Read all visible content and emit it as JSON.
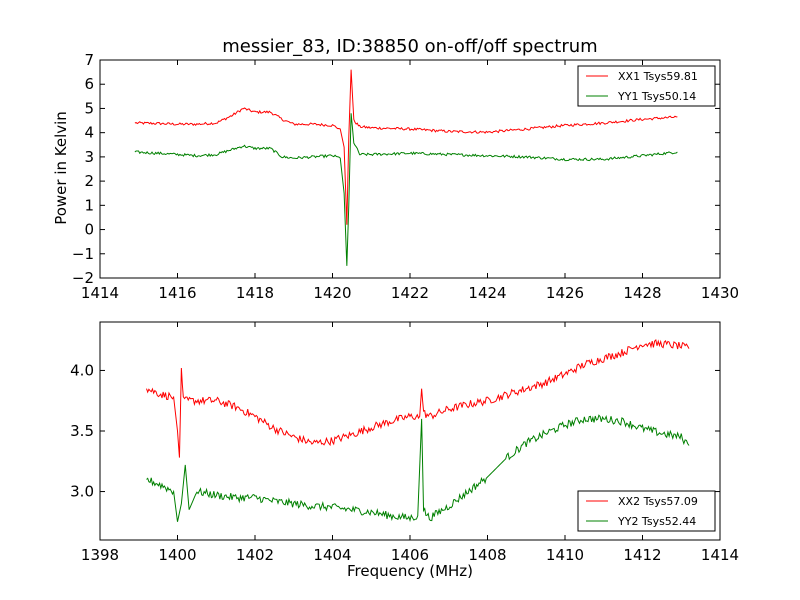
{
  "chart_data": [
    {
      "type": "line",
      "title": "messier_83, ID:38850 on-off/off spectrum",
      "xlabel": "",
      "ylabel": "Power in Kelvin",
      "xlim": [
        1414,
        1430
      ],
      "ylim": [
        -2,
        7
      ],
      "xticks": [
        "1414",
        "1416",
        "1418",
        "1420",
        "1422",
        "1424",
        "1426",
        "1428",
        "1430"
      ],
      "yticks": [
        "−2",
        "−1",
        "0",
        "1",
        "2",
        "3",
        "4",
        "5",
        "6",
        "7"
      ],
      "legend_position": "top-right",
      "series": [
        {
          "name": "XX1 Tsys59.81",
          "color": "#ff0000",
          "points": [
            [
              1414.9,
              4.4
            ],
            [
              1415.5,
              4.38
            ],
            [
              1416.0,
              4.35
            ],
            [
              1416.5,
              4.35
            ],
            [
              1417.0,
              4.4
            ],
            [
              1417.4,
              4.7
            ],
            [
              1417.7,
              5.0
            ],
            [
              1418.0,
              4.85
            ],
            [
              1418.4,
              4.85
            ],
            [
              1418.7,
              4.55
            ],
            [
              1419.0,
              4.35
            ],
            [
              1419.5,
              4.35
            ],
            [
              1420.0,
              4.3
            ],
            [
              1420.2,
              4.15
            ],
            [
              1420.3,
              3.4
            ],
            [
              1420.37,
              0.2
            ],
            [
              1420.42,
              3.8
            ],
            [
              1420.48,
              6.6
            ],
            [
              1420.55,
              4.5
            ],
            [
              1420.7,
              4.25
            ],
            [
              1421.0,
              4.2
            ],
            [
              1422.0,
              4.15
            ],
            [
              1423.0,
              4.05
            ],
            [
              1424.0,
              4.02
            ],
            [
              1425.0,
              4.15
            ],
            [
              1426.0,
              4.3
            ],
            [
              1427.0,
              4.4
            ],
            [
              1428.0,
              4.55
            ],
            [
              1428.9,
              4.65
            ]
          ]
        },
        {
          "name": "YY1 Tsys50.14",
          "color": "#008000",
          "points": [
            [
              1414.9,
              3.2
            ],
            [
              1415.5,
              3.15
            ],
            [
              1416.0,
              3.1
            ],
            [
              1416.5,
              3.05
            ],
            [
              1417.0,
              3.1
            ],
            [
              1417.4,
              3.3
            ],
            [
              1417.7,
              3.45
            ],
            [
              1418.0,
              3.35
            ],
            [
              1418.4,
              3.35
            ],
            [
              1418.7,
              3.0
            ],
            [
              1419.0,
              2.95
            ],
            [
              1419.5,
              3.0
            ],
            [
              1420.0,
              3.05
            ],
            [
              1420.2,
              2.95
            ],
            [
              1420.3,
              1.5
            ],
            [
              1420.37,
              -1.5
            ],
            [
              1420.42,
              1.0
            ],
            [
              1420.48,
              4.8
            ],
            [
              1420.55,
              3.6
            ],
            [
              1420.7,
              3.1
            ],
            [
              1421.0,
              3.1
            ],
            [
              1422.0,
              3.15
            ],
            [
              1423.0,
              3.1
            ],
            [
              1424.0,
              3.05
            ],
            [
              1425.0,
              3.0
            ],
            [
              1426.0,
              2.9
            ],
            [
              1427.0,
              2.9
            ],
            [
              1428.0,
              3.05
            ],
            [
              1428.9,
              3.2
            ]
          ]
        }
      ]
    },
    {
      "type": "line",
      "title": "",
      "xlabel": "Frequency (MHz)",
      "ylabel": "",
      "xlim": [
        1398,
        1414
      ],
      "ylim": [
        2.6,
        4.4
      ],
      "xticks": [
        "1398",
        "1400",
        "1402",
        "1404",
        "1406",
        "1408",
        "1410",
        "1412",
        "1414"
      ],
      "yticks": [
        "3.0",
        "3.5",
        "4.0"
      ],
      "legend_position": "bottom-right",
      "series": [
        {
          "name": "XX2 Tsys57.09",
          "color": "#ff0000",
          "points": [
            [
              1399.2,
              3.85
            ],
            [
              1399.6,
              3.8
            ],
            [
              1399.9,
              3.78
            ],
            [
              1400.0,
              3.5
            ],
            [
              1400.05,
              3.28
            ],
            [
              1400.1,
              4.02
            ],
            [
              1400.15,
              3.75
            ],
            [
              1400.5,
              3.75
            ],
            [
              1401.0,
              3.75
            ],
            [
              1401.5,
              3.7
            ],
            [
              1402.0,
              3.62
            ],
            [
              1402.5,
              3.52
            ],
            [
              1403.0,
              3.45
            ],
            [
              1403.5,
              3.4
            ],
            [
              1404.0,
              3.42
            ],
            [
              1404.5,
              3.47
            ],
            [
              1405.0,
              3.53
            ],
            [
              1405.5,
              3.58
            ],
            [
              1406.0,
              3.62
            ],
            [
              1406.25,
              3.62
            ],
            [
              1406.3,
              3.85
            ],
            [
              1406.35,
              3.65
            ],
            [
              1406.5,
              3.62
            ],
            [
              1407.0,
              3.68
            ],
            [
              1407.5,
              3.72
            ],
            [
              1408.0,
              3.75
            ],
            [
              1408.5,
              3.8
            ],
            [
              1409.0,
              3.85
            ],
            [
              1409.5,
              3.9
            ],
            [
              1410.0,
              3.97
            ],
            [
              1410.5,
              4.05
            ],
            [
              1411.0,
              4.1
            ],
            [
              1411.5,
              4.15
            ],
            [
              1412.0,
              4.22
            ],
            [
              1412.5,
              4.22
            ],
            [
              1413.0,
              4.2
            ],
            [
              1413.2,
              4.18
            ]
          ]
        },
        {
          "name": "YY2 Tsys52.44",
          "color": "#008000",
          "points": [
            [
              1399.2,
              3.1
            ],
            [
              1399.6,
              3.05
            ],
            [
              1399.9,
              3.0
            ],
            [
              1400.0,
              2.75
            ],
            [
              1400.1,
              2.9
            ],
            [
              1400.2,
              3.22
            ],
            [
              1400.3,
              2.85
            ],
            [
              1400.5,
              3.0
            ],
            [
              1401.0,
              2.97
            ],
            [
              1401.5,
              2.95
            ],
            [
              1402.0,
              2.95
            ],
            [
              1402.5,
              2.92
            ],
            [
              1403.0,
              2.9
            ],
            [
              1403.5,
              2.88
            ],
            [
              1404.0,
              2.87
            ],
            [
              1404.5,
              2.85
            ],
            [
              1405.0,
              2.83
            ],
            [
              1405.5,
              2.8
            ],
            [
              1406.0,
              2.78
            ],
            [
              1406.2,
              2.8
            ],
            [
              1406.3,
              3.6
            ],
            [
              1406.35,
              2.85
            ],
            [
              1406.5,
              2.78
            ],
            [
              1407.0,
              2.88
            ],
            [
              1407.5,
              3.0
            ],
            [
              1408.0,
              3.12
            ],
            [
              1408.5,
              3.28
            ],
            [
              1409.0,
              3.4
            ],
            [
              1409.5,
              3.48
            ],
            [
              1410.0,
              3.55
            ],
            [
              1410.5,
              3.6
            ],
            [
              1411.0,
              3.6
            ],
            [
              1411.5,
              3.58
            ],
            [
              1412.0,
              3.52
            ],
            [
              1412.5,
              3.48
            ],
            [
              1413.0,
              3.45
            ],
            [
              1413.2,
              3.38
            ]
          ]
        }
      ]
    }
  ]
}
